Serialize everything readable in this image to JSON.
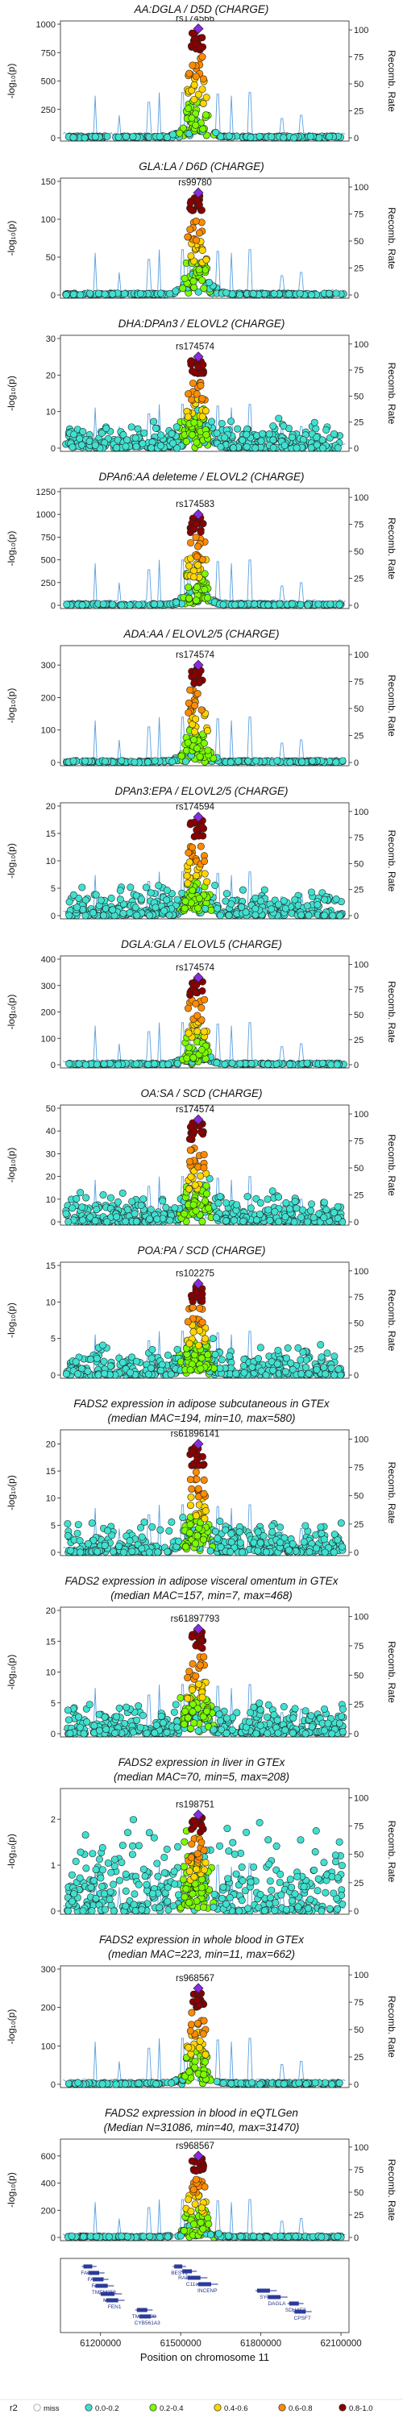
{
  "figure": {
    "left_axis_label": "-log₁₀(p)",
    "right_axis_label": "Recomb. Rate",
    "recomb_ticks": [
      0,
      25,
      50,
      75,
      100
    ],
    "x_axis_label": "Position on chromosome 11",
    "x_ticks": [
      61200000,
      61500000,
      61800000,
      62100000
    ],
    "x_range": [
      61050000,
      62130000
    ]
  },
  "chart_data": [
    {
      "type": "scatter",
      "title": [
        "AA:DGLA / D5D (CHARGE)"
      ],
      "lead_snp": "rs174566",
      "ylim": [
        0,
        1000
      ],
      "yticks": [
        0,
        250,
        500,
        750,
        1000
      ],
      "peak": 960,
      "background": "low",
      "spread": 0.6
    },
    {
      "type": "scatter",
      "title": [
        "GLA:LA / D6D (CHARGE)"
      ],
      "lead_snp": "rs99780",
      "ylim": [
        0,
        150
      ],
      "yticks": [
        0,
        50,
        100,
        150
      ],
      "peak": 135,
      "background": "low",
      "spread": 0.9
    },
    {
      "type": "scatter",
      "title": [
        "DHA:DPAn3 / ELOVL2 (CHARGE)"
      ],
      "lead_snp": "rs174574",
      "ylim": [
        0,
        30
      ],
      "yticks": [
        0,
        10,
        20,
        30
      ],
      "peak": 25,
      "background": "medium",
      "spread": 1.0
    },
    {
      "type": "scatter",
      "title": [
        "DPAn6:AA deleteme / ELOVL2 (CHARGE)"
      ],
      "lead_snp": "rs174583",
      "ylim": [
        0,
        1250
      ],
      "yticks": [
        0,
        250,
        500,
        750,
        1000,
        1250
      ],
      "peak": 1000,
      "background": "low",
      "spread": 0.6
    },
    {
      "type": "scatter",
      "title": [
        "ADA:AA / ELOVL2/5 (CHARGE)"
      ],
      "lead_snp": "rs174574",
      "ylim": [
        0,
        350
      ],
      "yticks": [
        0,
        100,
        200,
        300
      ],
      "peak": 300,
      "background": "low",
      "spread": 0.7
    },
    {
      "type": "scatter",
      "title": [
        "DPAn3:EPA / ELOVL2/5 (CHARGE)"
      ],
      "lead_snp": "rs174594",
      "ylim": [
        0,
        20
      ],
      "yticks": [
        0,
        5,
        10,
        15,
        20
      ],
      "peak": 18,
      "background": "medium",
      "spread": 0.8
    },
    {
      "type": "scatter",
      "title": [
        "DGLA:GLA / ELOVL5 (CHARGE)"
      ],
      "lead_snp": "rs174574",
      "ylim": [
        0,
        400
      ],
      "yticks": [
        0,
        100,
        200,
        300,
        400
      ],
      "peak": 330,
      "background": "low",
      "spread": 0.6
    },
    {
      "type": "scatter",
      "title": [
        "OA:SA / SCD (CHARGE)"
      ],
      "lead_snp": "rs174574",
      "ylim": [
        0,
        50
      ],
      "yticks": [
        0,
        10,
        20,
        30,
        40,
        50
      ],
      "peak": 45,
      "background": "medium",
      "spread": 1.0
    },
    {
      "type": "scatter",
      "title": [
        "POA:PA / SCD (CHARGE)"
      ],
      "lead_snp": "rs102275",
      "ylim": [
        0,
        15
      ],
      "yticks": [
        0,
        5,
        10,
        15
      ],
      "peak": 12.5,
      "background": "medium",
      "spread": 1.0
    },
    {
      "type": "scatter",
      "title": [
        "FADS2 expression in adipose subcutaneous in GTEx",
        "(median MAC=194, min=10, max=580)"
      ],
      "lead_snp": "rs61896141",
      "ylim": [
        0,
        22
      ],
      "yticks": [
        0,
        5,
        10,
        15,
        20
      ],
      "peak": 20,
      "background": "medium",
      "spread": 0.8
    },
    {
      "type": "scatter",
      "title": [
        "FADS2 expression in adipose visceral omentum in GTEx",
        "(median MAC=157, min=7, max=468)"
      ],
      "lead_snp": "rs61897793",
      "ylim": [
        0,
        20
      ],
      "yticks": [
        0,
        5,
        10,
        15,
        20
      ],
      "peak": 17,
      "background": "medium",
      "spread": 0.8
    },
    {
      "type": "scatter",
      "title": [
        "FADS2 expression in liver in GTEx",
        "(median MAC=70, min=5, max=208)"
      ],
      "lead_snp": "rs198751",
      "ylim": [
        0,
        2.6
      ],
      "yticks": [
        0,
        1,
        2
      ],
      "peak": 2.1,
      "background": "high",
      "spread": 1.0
    },
    {
      "type": "scatter",
      "title": [
        "FADS2 expression in whole blood in GTEx",
        "(median MAC=223, min=11, max=662)"
      ],
      "lead_snp": "rs968567",
      "ylim": [
        0,
        300
      ],
      "yticks": [
        0,
        100,
        200,
        300
      ],
      "peak": 250,
      "background": "low",
      "spread": 0.7
    },
    {
      "type": "scatter",
      "title": [
        "FADS2 expression in blood in eQTLGen",
        "(Median N=31086, min=40, max=31470)"
      ],
      "lead_snp": "rs968567",
      "ylim": [
        0,
        700
      ],
      "yticks": [
        0,
        200,
        400,
        600
      ],
      "peak": 600,
      "background": "low",
      "spread": 0.7
    }
  ],
  "legend": {
    "title": "r2",
    "items": [
      {
        "label": "miss",
        "color": "#bbbbbb"
      },
      {
        "label": "0.0-0.2",
        "color": "#40e0d0"
      },
      {
        "label": "0.2-0.4",
        "color": "#7cfc00"
      },
      {
        "label": "0.4-0.6",
        "color": "#ffd700"
      },
      {
        "label": "0.6-0.8",
        "color": "#ff8c00"
      },
      {
        "label": "0.8-1.0",
        "color": "#8b0000"
      }
    ],
    "lead_color": "#8a2be2"
  },
  "genes": [
    {
      "label": "FADS1"
    },
    {
      "label": "FADS2"
    },
    {
      "label": "FADS3"
    },
    {
      "label": "TMEM258"
    },
    {
      "label": "MYRF"
    },
    {
      "label": "FEN1"
    },
    {
      "label": "TMEM138"
    },
    {
      "label": "CYB561A3"
    },
    {
      "label": "BEST1"
    },
    {
      "label": "RAB3IL1"
    },
    {
      "label": "C11orf10"
    },
    {
      "label": "INCENP"
    },
    {
      "label": "SYT7"
    },
    {
      "label": "DAGLA"
    },
    {
      "label": "SDHAF2"
    },
    {
      "label": "CPSF7"
    }
  ]
}
